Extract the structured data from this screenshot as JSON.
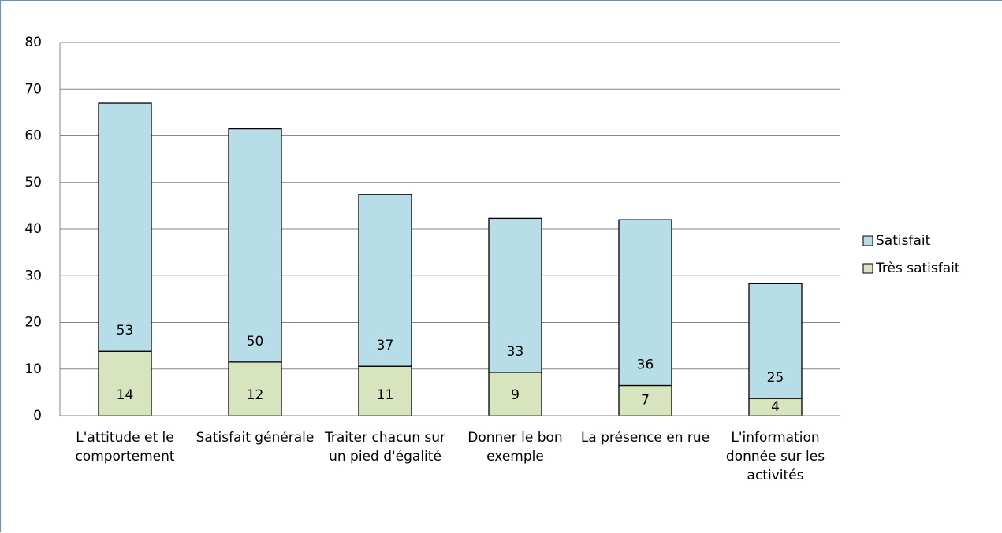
{
  "chart_data": {
    "type": "stacked_bar",
    "categories": [
      "L'attitude et le comportement",
      "Satisfait générale",
      "Traiter chacun sur un pied d'égalité",
      "Donner le bon exemple",
      "La présence en rue",
      "L'information donnée sur les activités"
    ],
    "series": [
      {
        "name": "Très satisfait",
        "color": "#d7e4bd",
        "values": [
          13.8,
          11.5,
          10.6,
          9.3,
          6.5,
          3.7
        ],
        "value_labels": [
          "14",
          "12",
          "11",
          "9",
          "7",
          "4"
        ]
      },
      {
        "name": "Satisfait",
        "color": "#b7dde8",
        "values": [
          53.2,
          50.0,
          36.8,
          33.0,
          35.5,
          24.6
        ],
        "value_labels": [
          "53",
          "50",
          "37",
          "33",
          "36",
          "25"
        ]
      }
    ],
    "ylim": [
      0,
      80
    ],
    "yticks": [
      0,
      10,
      20,
      30,
      40,
      50,
      60,
      70,
      80
    ],
    "grid": true,
    "legend": "right"
  }
}
